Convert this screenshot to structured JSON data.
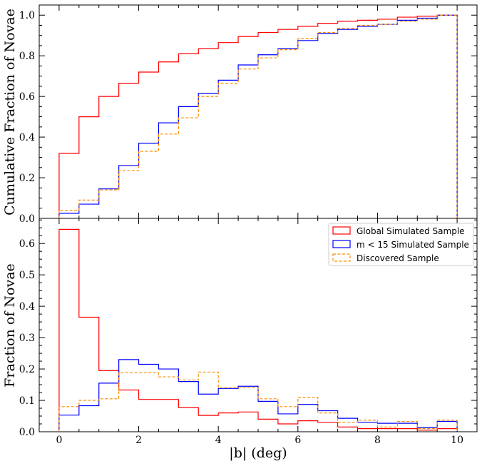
{
  "chart_data": [
    {
      "type": "step",
      "panel": "top",
      "ylabel": "Cumulative Fraction of Novae",
      "xlim": [
        -0.5,
        10.5
      ],
      "ylim": [
        0,
        1.05
      ],
      "yticks": [
        "0.0",
        "0.2",
        "0.4",
        "0.6",
        "0.8",
        "1.0"
      ],
      "ytick_values": [
        0,
        0.2,
        0.4,
        0.6,
        0.8,
        1.0
      ],
      "bin_edges": [
        0,
        0.5,
        1.0,
        1.5,
        2.0,
        2.5,
        3.0,
        3.5,
        4.0,
        4.5,
        5.0,
        5.5,
        6.0,
        6.5,
        7.0,
        7.5,
        8.0,
        8.5,
        9.0,
        9.5,
        10.0
      ],
      "series": [
        {
          "name": "Global Simulated Sample",
          "color": "#ff0000",
          "style": "solid",
          "values": [
            0.32,
            0.5,
            0.6,
            0.665,
            0.72,
            0.77,
            0.81,
            0.835,
            0.865,
            0.895,
            0.915,
            0.93,
            0.945,
            0.96,
            0.97,
            0.975,
            0.98,
            0.99,
            0.995,
            1.0
          ]
        },
        {
          "name": "m < 15 Simulated Sample",
          "color": "#0000ff",
          "style": "solid",
          "values": [
            0.025,
            0.07,
            0.145,
            0.26,
            0.37,
            0.47,
            0.55,
            0.615,
            0.68,
            0.755,
            0.805,
            0.835,
            0.875,
            0.91,
            0.93,
            0.945,
            0.955,
            0.975,
            0.985,
            1.0
          ]
        },
        {
          "name": "Discovered Sample",
          "color": "#ff8c00",
          "style": "dashed",
          "values": [
            0.04,
            0.09,
            0.14,
            0.235,
            0.33,
            0.415,
            0.495,
            0.6,
            0.665,
            0.735,
            0.79,
            0.83,
            0.885,
            0.915,
            0.935,
            0.95,
            0.955,
            0.97,
            0.98,
            1.0
          ]
        }
      ]
    },
    {
      "type": "step",
      "panel": "bottom",
      "xlabel": "|b| (deg)",
      "ylabel": "Fraction of Novae",
      "xlim": [
        -0.5,
        10.5
      ],
      "ylim": [
        0,
        0.68
      ],
      "xticks": [
        "0",
        "2",
        "4",
        "6",
        "8",
        "10"
      ],
      "xtick_values": [
        0,
        2,
        4,
        6,
        8,
        10
      ],
      "yticks": [
        "0.0",
        "0.1",
        "0.2",
        "0.3",
        "0.4",
        "0.5",
        "0.6"
      ],
      "ytick_values": [
        0,
        0.1,
        0.2,
        0.3,
        0.4,
        0.5,
        0.6
      ],
      "bin_edges": [
        0,
        0.5,
        1.0,
        1.5,
        2.0,
        2.5,
        3.0,
        3.5,
        4.0,
        4.5,
        5.0,
        5.5,
        6.0,
        6.5,
        7.0,
        7.5,
        8.0,
        8.5,
        9.0,
        9.5,
        10.0
      ],
      "legend_position": "top-right",
      "series": [
        {
          "name": "Global Simulated Sample",
          "color": "#ff0000",
          "style": "solid",
          "values": [
            0.645,
            0.365,
            0.195,
            0.133,
            0.103,
            0.103,
            0.077,
            0.052,
            0.06,
            0.063,
            0.04,
            0.025,
            0.035,
            0.03,
            0.015,
            0.01,
            0.01,
            0.01,
            0.005,
            0.01
          ]
        },
        {
          "name": "m < 15 Simulated Sample",
          "color": "#0000ff",
          "style": "solid",
          "values": [
            0.053,
            0.083,
            0.155,
            0.23,
            0.215,
            0.2,
            0.16,
            0.12,
            0.138,
            0.145,
            0.097,
            0.057,
            0.087,
            0.067,
            0.043,
            0.03,
            0.027,
            0.027,
            0.013,
            0.033
          ]
        },
        {
          "name": "Discovered Sample",
          "color": "#ff8c00",
          "style": "dashed",
          "values": [
            0.08,
            0.1,
            0.105,
            0.188,
            0.188,
            0.175,
            0.165,
            0.19,
            0.14,
            0.14,
            0.105,
            0.08,
            0.11,
            0.06,
            0.03,
            0.037,
            0.015,
            0.033,
            0.01,
            0.037
          ]
        }
      ]
    }
  ]
}
